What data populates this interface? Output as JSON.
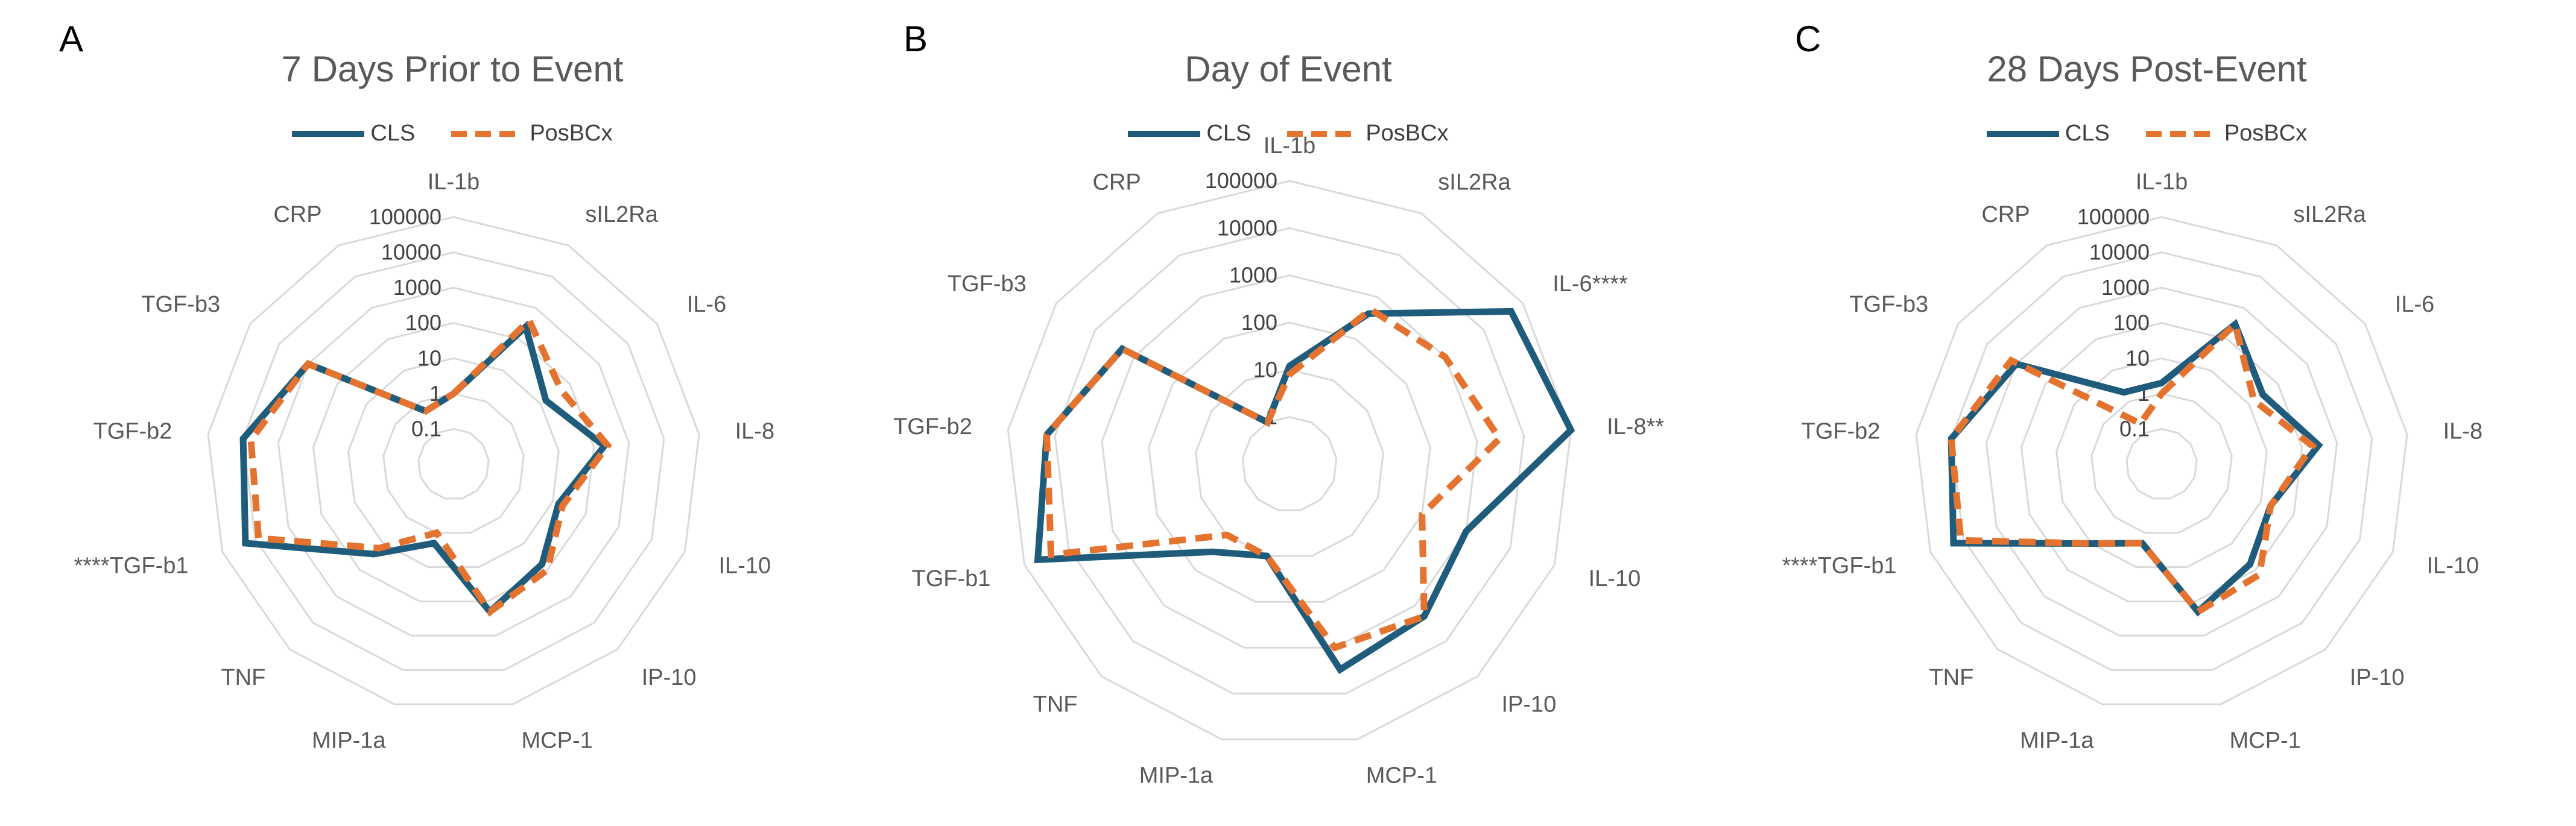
{
  "colors": {
    "CLS": "#1f5c7c",
    "PosBCx": "#e57330",
    "grid": "#d9d9d9",
    "label": "#595959"
  },
  "chart_data": [
    {
      "panel": "A",
      "type": "radar",
      "title": "7 Days Prior to Event",
      "scale": "log10",
      "rings": [
        "0.1",
        "1",
        "10",
        "100",
        "1000",
        "10000",
        "100000"
      ],
      "ring_range": [
        0.1,
        100000
      ],
      "categories": [
        "IL-1b",
        "sIL2Ra",
        "IL-6",
        "IL-8",
        "IL-10",
        "IP-10",
        "MCP-1",
        "MIP-1a",
        "TNF",
        "****TGF-b1",
        "TGF-b2",
        "TGF-b3",
        "CRP"
      ],
      "series": [
        {
          "name": "CLS",
          "style": "solid",
          "values": [
            1,
            250,
            15,
            200,
            15,
            60,
            200,
            2,
            25,
            20000,
            10000,
            1000,
            0.5
          ]
        },
        {
          "name": "PosBCx",
          "style": "dashed",
          "values": [
            1,
            400,
            50,
            250,
            20,
            100,
            200,
            1,
            15,
            8000,
            6000,
            1000,
            0.5
          ]
        }
      ],
      "legend": [
        "CLS",
        "PosBCx"
      ],
      "legend_position": "top"
    },
    {
      "panel": "B",
      "type": "radar",
      "title": "Day of Event",
      "scale": "log10",
      "rings": [
        "1",
        "10",
        "100",
        "1000",
        "10000",
        "100000"
      ],
      "ring_range": [
        1,
        100000
      ],
      "categories": [
        "IL-1b",
        "sIL2Ra",
        "IL-6****",
        "IL-8**",
        "IL-10",
        "IP-10",
        "MCP-1",
        "MIP-1a",
        "TNF",
        "TGF-b1",
        "TGF-b2",
        "TGF-b3",
        "CRP"
      ],
      "series": [
        {
          "name": "CLS",
          "style": "solid",
          "values": [
            12,
            400,
            50000,
            100000,
            1000,
            2000,
            3000,
            10,
            30,
            50000,
            15000,
            2000,
            1
          ]
        },
        {
          "name": "PosBCx",
          "style": "dashed",
          "values": [
            8,
            500,
            1000,
            3000,
            100,
            2000,
            1000,
            10,
            10,
            25000,
            15000,
            2000,
            1
          ]
        }
      ],
      "legend": [
        "CLS",
        "PosBCx"
      ],
      "legend_position": "top"
    },
    {
      "panel": "C",
      "type": "radar",
      "title": "28 Days Post-Event",
      "scale": "log10",
      "rings": [
        "0.1",
        "1",
        "10",
        "100",
        "1000",
        "10000",
        "100000"
      ],
      "ring_range": [
        0.1,
        100000
      ],
      "categories": [
        "IL-1b",
        "sIL2Ra",
        "IL-6",
        "IL-8",
        "IL-10",
        "IP-10",
        "MCP-1",
        "MIP-1a",
        "TNF",
        "****TGF-b1",
        "TGF-b2",
        "TGF-b3",
        "CRP"
      ],
      "series": [
        {
          "name": "CLS",
          "style": "solid",
          "values": [
            2,
            300,
            30,
            300,
            20,
            60,
            200,
            2,
            10,
            20000,
            10000,
            1000,
            2
          ]
        },
        {
          "name": "PosBCx",
          "style": "dashed",
          "values": [
            1,
            300,
            15,
            200,
            20,
            150,
            200,
            2,
            10,
            12000,
            10000,
            1500,
            0.2
          ]
        }
      ],
      "legend": [
        "CLS",
        "PosBCx"
      ],
      "legend_position": "top"
    }
  ]
}
